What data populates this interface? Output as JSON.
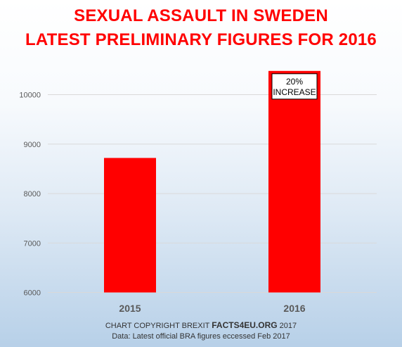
{
  "title": {
    "line1": "SEXUAL ASSAULT IN SWEDEN",
    "line2": "LATEST PRELIMINARY FIGURES FOR 2016"
  },
  "footer": {
    "copyright_prefix": "CHART COPYRIGHT BREXIT ",
    "copyright_brand": "FACTS4EU.ORG",
    "copyright_suffix": " 2017",
    "source": "Data: Latest official BRA figures eccessed Feb 2017"
  },
  "colors": {
    "bar": "#ff0000",
    "title": "#ff0000",
    "grid": "#d9d9d9",
    "tick": "#595959"
  },
  "chart_data": {
    "type": "bar",
    "categories": [
      "2015",
      "2016"
    ],
    "values": [
      8720,
      10480
    ],
    "ylim": [
      6000,
      10500
    ],
    "yticks": [
      6000,
      7000,
      8000,
      9000,
      10000
    ],
    "grid": true,
    "annotations": [
      {
        "category": "2016",
        "lines": [
          "20%",
          "INCREASE"
        ]
      }
    ]
  }
}
